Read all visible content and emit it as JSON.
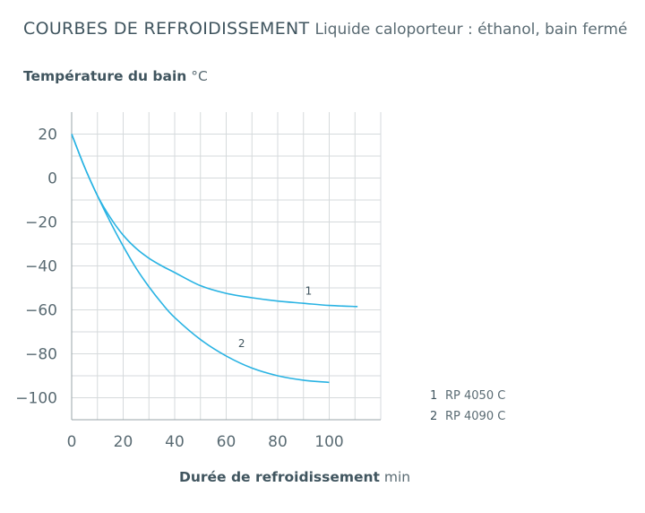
{
  "chart_data": {
    "type": "line",
    "title": "COURBES DE REFROIDISSEMENT",
    "subtitle": "Liquide caloporteur : éthanol, bain fermé",
    "ylabel": "Température du bain",
    "ylabel_unit": "°C",
    "xlabel": "Durée de refroidissement",
    "xlabel_unit": "min",
    "xlim": [
      0,
      120
    ],
    "ylim": [
      -110,
      30
    ],
    "x_ticks": [
      0,
      20,
      40,
      60,
      80,
      100
    ],
    "x_tick_labels": [
      "0",
      "20",
      "40",
      "60",
      "80",
      "100"
    ],
    "y_ticks": [
      20,
      0,
      -20,
      -40,
      -60,
      -80,
      -100
    ],
    "y_tick_labels": [
      "20",
      "0",
      "−20",
      "−40",
      "−60",
      "−80",
      "−100"
    ],
    "grid": true,
    "color": "#29b3e3",
    "series": [
      {
        "name": "1",
        "label": "RP 4050 C",
        "x": [
          0,
          5,
          10,
          15,
          20,
          25,
          30,
          35,
          40,
          50,
          60,
          70,
          80,
          90,
          100,
          111
        ],
        "y": [
          20,
          5,
          -8,
          -18,
          -26,
          -32,
          -36.5,
          -40,
          -43,
          -49,
          -52.5,
          -54.5,
          -56,
          -57,
          -58,
          -58.5
        ]
      },
      {
        "name": "2",
        "label": "RP 4090 C",
        "x": [
          0,
          5,
          10,
          15,
          20,
          25,
          30,
          35,
          40,
          50,
          60,
          70,
          80,
          90,
          100
        ],
        "y": [
          20,
          5,
          -8,
          -20,
          -31,
          -41,
          -49.5,
          -57,
          -63.5,
          -73.5,
          -81,
          -86.5,
          -90,
          -92,
          -93
        ]
      }
    ],
    "curve_labels": [
      {
        "text": "1",
        "x": 92,
        "y": -53
      },
      {
        "text": "2",
        "x": 66,
        "y": -77
      }
    ],
    "legend": {
      "position": "bottom-right",
      "entries": [
        {
          "num": "1",
          "label": "RP 4050 C"
        },
        {
          "num": "2",
          "label": "RP 4090 C"
        }
      ]
    }
  }
}
